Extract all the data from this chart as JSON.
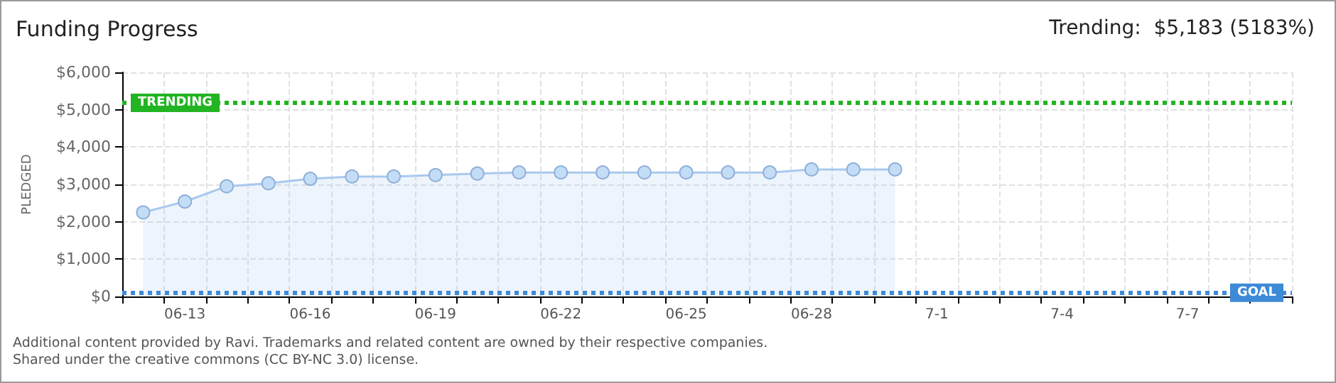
{
  "chart_data": {
    "type": "area",
    "title": "Funding Progress",
    "subtitle": "Trending:  $5,183 (5183%)",
    "ylabel": "PLEDGED",
    "categories": [
      null,
      "06-13",
      null,
      null,
      "06-16",
      null,
      null,
      "06-19",
      null,
      null,
      "06-22",
      null,
      null,
      "06-25",
      null,
      null,
      "06-28",
      null,
      null,
      "7-1",
      null,
      null,
      "7-4",
      null,
      null,
      "7-7",
      null,
      null
    ],
    "series": [
      {
        "color": "#a9c9ee",
        "values": [
          2250,
          2540,
          2950,
          3030,
          3150,
          3210,
          3210,
          3250,
          3290,
          3320,
          3320,
          3320,
          3320,
          3320,
          3320,
          3320,
          3400,
          3400,
          3400,
          null,
          null,
          null,
          null,
          null,
          null,
          null,
          null,
          null
        ]
      }
    ],
    "ylim": [
      0,
      6000
    ],
    "yticks": [
      {
        "value": 0,
        "label": "$0"
      },
      {
        "value": 1000,
        "label": "$1,000"
      },
      {
        "value": 2000,
        "label": "$2,000"
      },
      {
        "value": 3000,
        "label": "$3,000"
      },
      {
        "value": 4000,
        "label": "$4,000"
      },
      {
        "value": 5000,
        "label": "$5,000"
      },
      {
        "value": 6000,
        "label": "$6,000"
      }
    ],
    "ref_lines": [
      {
        "axis": "y",
        "value": 5183,
        "label": "TRENDING",
        "color": "#22b422",
        "line_style": "dotted"
      },
      {
        "axis": "y",
        "value": 100,
        "label": "GOAL",
        "color": "#3d8ad6",
        "line_style": "dotted"
      }
    ],
    "grid": true,
    "marker": "circle",
    "annotations": [
      "Additional content provided by Ravi. Trademarks and related content are owned by their respective companies.",
      "Shared under the creative commons (CC BY-NC 3.0) license."
    ]
  }
}
